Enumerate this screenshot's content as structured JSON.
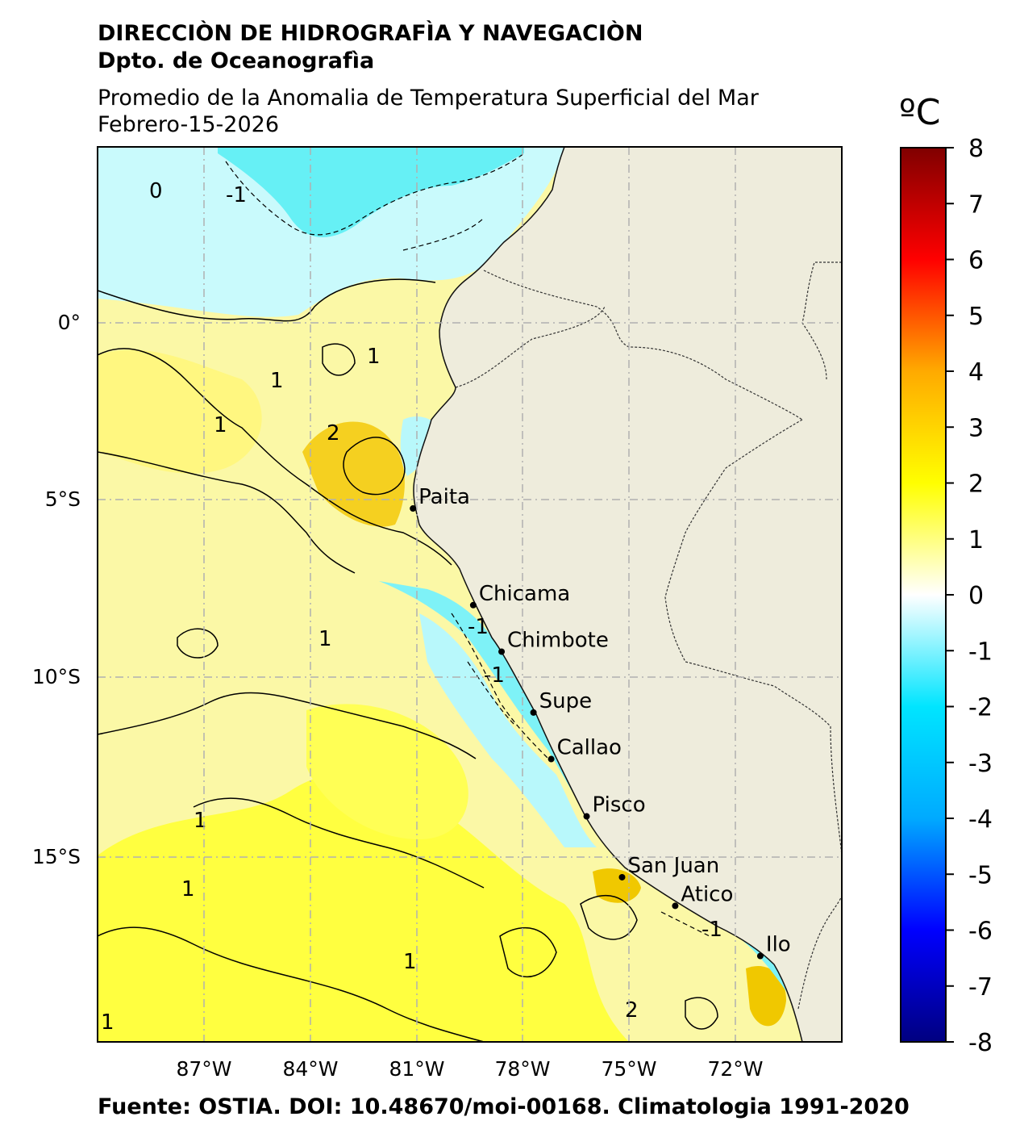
{
  "header": {
    "organization": "DIRECCIÒN DE HIDROGRAFÌA Y NAVEGACIÒN",
    "department": "Dpto. de Oceanografìa",
    "title": "Promedio de la Anomalia de Temperatura Superficial del Mar",
    "date": "Febrero-15-2026"
  },
  "footer": {
    "source": "Fuente: OSTIA. DOI: 10.48670/moi-00168. Climatologia 1991-2020"
  },
  "map": {
    "projection": "PlateCarree",
    "lon_range": [
      -90,
      -69
    ],
    "lat_range": [
      -20,
      5
    ],
    "lon_ticks": [
      "87°W",
      "84°W",
      "81°W",
      "78°W",
      "75°W",
      "72°W"
    ],
    "lat_ticks": [
      "0°",
      "5°S",
      "10°S",
      "15°S"
    ],
    "gridlines": true,
    "land_color": "#eeecdc",
    "contour_labels": [
      "0",
      "1",
      "-1",
      "2",
      "1",
      "1",
      "-1",
      "1",
      "-1",
      "1",
      "1",
      "-1",
      "1",
      "2",
      "1"
    ],
    "cities": [
      {
        "name": "Paita",
        "lon": -81.1,
        "lat": -5.1
      },
      {
        "name": "Chicama",
        "lon": -79.4,
        "lat": -7.8
      },
      {
        "name": "Chimbote",
        "lon": -78.6,
        "lat": -9.1
      },
      {
        "name": "Supe",
        "lon": -77.7,
        "lat": -10.8
      },
      {
        "name": "Callao",
        "lon": -77.2,
        "lat": -12.1
      },
      {
        "name": "Pisco",
        "lon": -76.2,
        "lat": -13.7
      },
      {
        "name": "San Juan",
        "lon": -75.2,
        "lat": -15.4
      },
      {
        "name": "Atico",
        "lon": -73.7,
        "lat": -16.2
      },
      {
        "name": "Ilo",
        "lon": -71.3,
        "lat": -17.6
      }
    ]
  },
  "colorbar": {
    "unit": "ºC",
    "min": -8,
    "max": 8,
    "tick_labels": [
      "8",
      "7",
      "6",
      "5",
      "4",
      "3",
      "2",
      "1",
      "0",
      "-1",
      "-2",
      "-3",
      "-4",
      "-5",
      "-6",
      "-7",
      "-8"
    ],
    "colors": [
      "#000080",
      "#0000ff",
      "#00aaff",
      "#00e5ff",
      "#ffffff",
      "#ffff00",
      "#ffaa00",
      "#ff0000",
      "#800000"
    ]
  }
}
